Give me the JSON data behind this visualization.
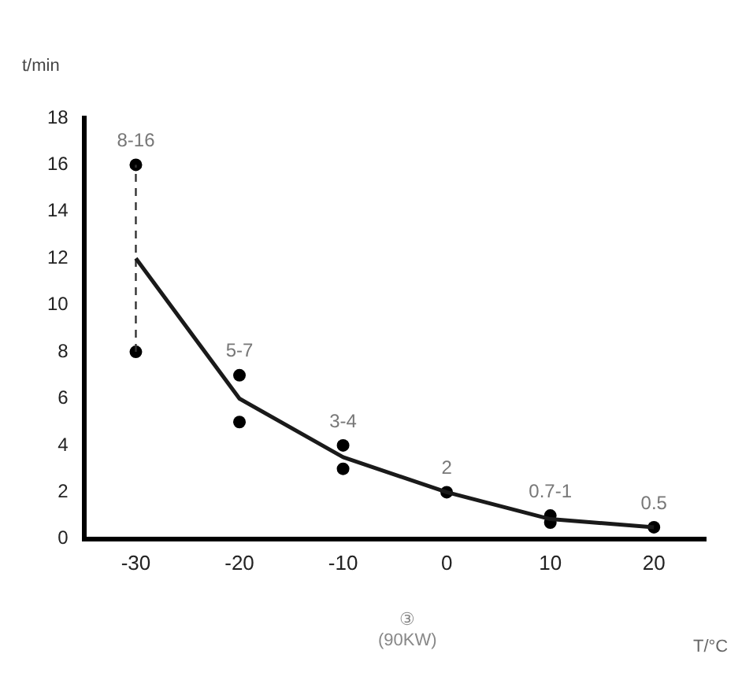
{
  "chart_data": {
    "type": "line",
    "xlabel": "T/°C",
    "ylabel": "t/min",
    "xlim": [
      -35,
      25
    ],
    "xticks": [
      -30,
      -20,
      -10,
      0,
      10,
      20
    ],
    "ylim": [
      0,
      18
    ],
    "yticks": [
      0,
      2,
      4,
      6,
      8,
      10,
      12,
      14,
      16,
      18
    ],
    "grid": false,
    "legend": false,
    "series": [
      {
        "type": "line",
        "color": "#1a1a1a",
        "x": [
          -30,
          -20,
          -10,
          0,
          10,
          20
        ],
        "values": [
          12,
          6,
          3.5,
          2,
          0.85,
          0.5
        ],
        "marker": "none",
        "line_style": "solid"
      },
      {
        "type": "line",
        "color": "#333333",
        "x": [
          -30,
          -30
        ],
        "values": [
          8,
          16
        ],
        "marker": "none",
        "line_style": "dashed"
      },
      {
        "type": "scatter",
        "color": "#000000",
        "x": [
          -30,
          -30,
          -20,
          -20,
          -10,
          -10,
          0,
          10,
          10,
          20
        ],
        "values": [
          16,
          8,
          7,
          5,
          4,
          3,
          2,
          1,
          0.7,
          0.5
        ],
        "marker": "circle"
      }
    ],
    "annotations": [
      {
        "text": "8-16",
        "x": -30,
        "y": 16
      },
      {
        "text": "5-7",
        "x": -20,
        "y": 7
      },
      {
        "text": "3-4",
        "x": -10,
        "y": 4
      },
      {
        "text": "2",
        "x": 0,
        "y": 2
      },
      {
        "text": "0.7-1",
        "x": 10,
        "y": 1
      },
      {
        "text": "0.5",
        "x": 20,
        "y": 0.5
      },
      "③ (90KW)"
    ]
  }
}
